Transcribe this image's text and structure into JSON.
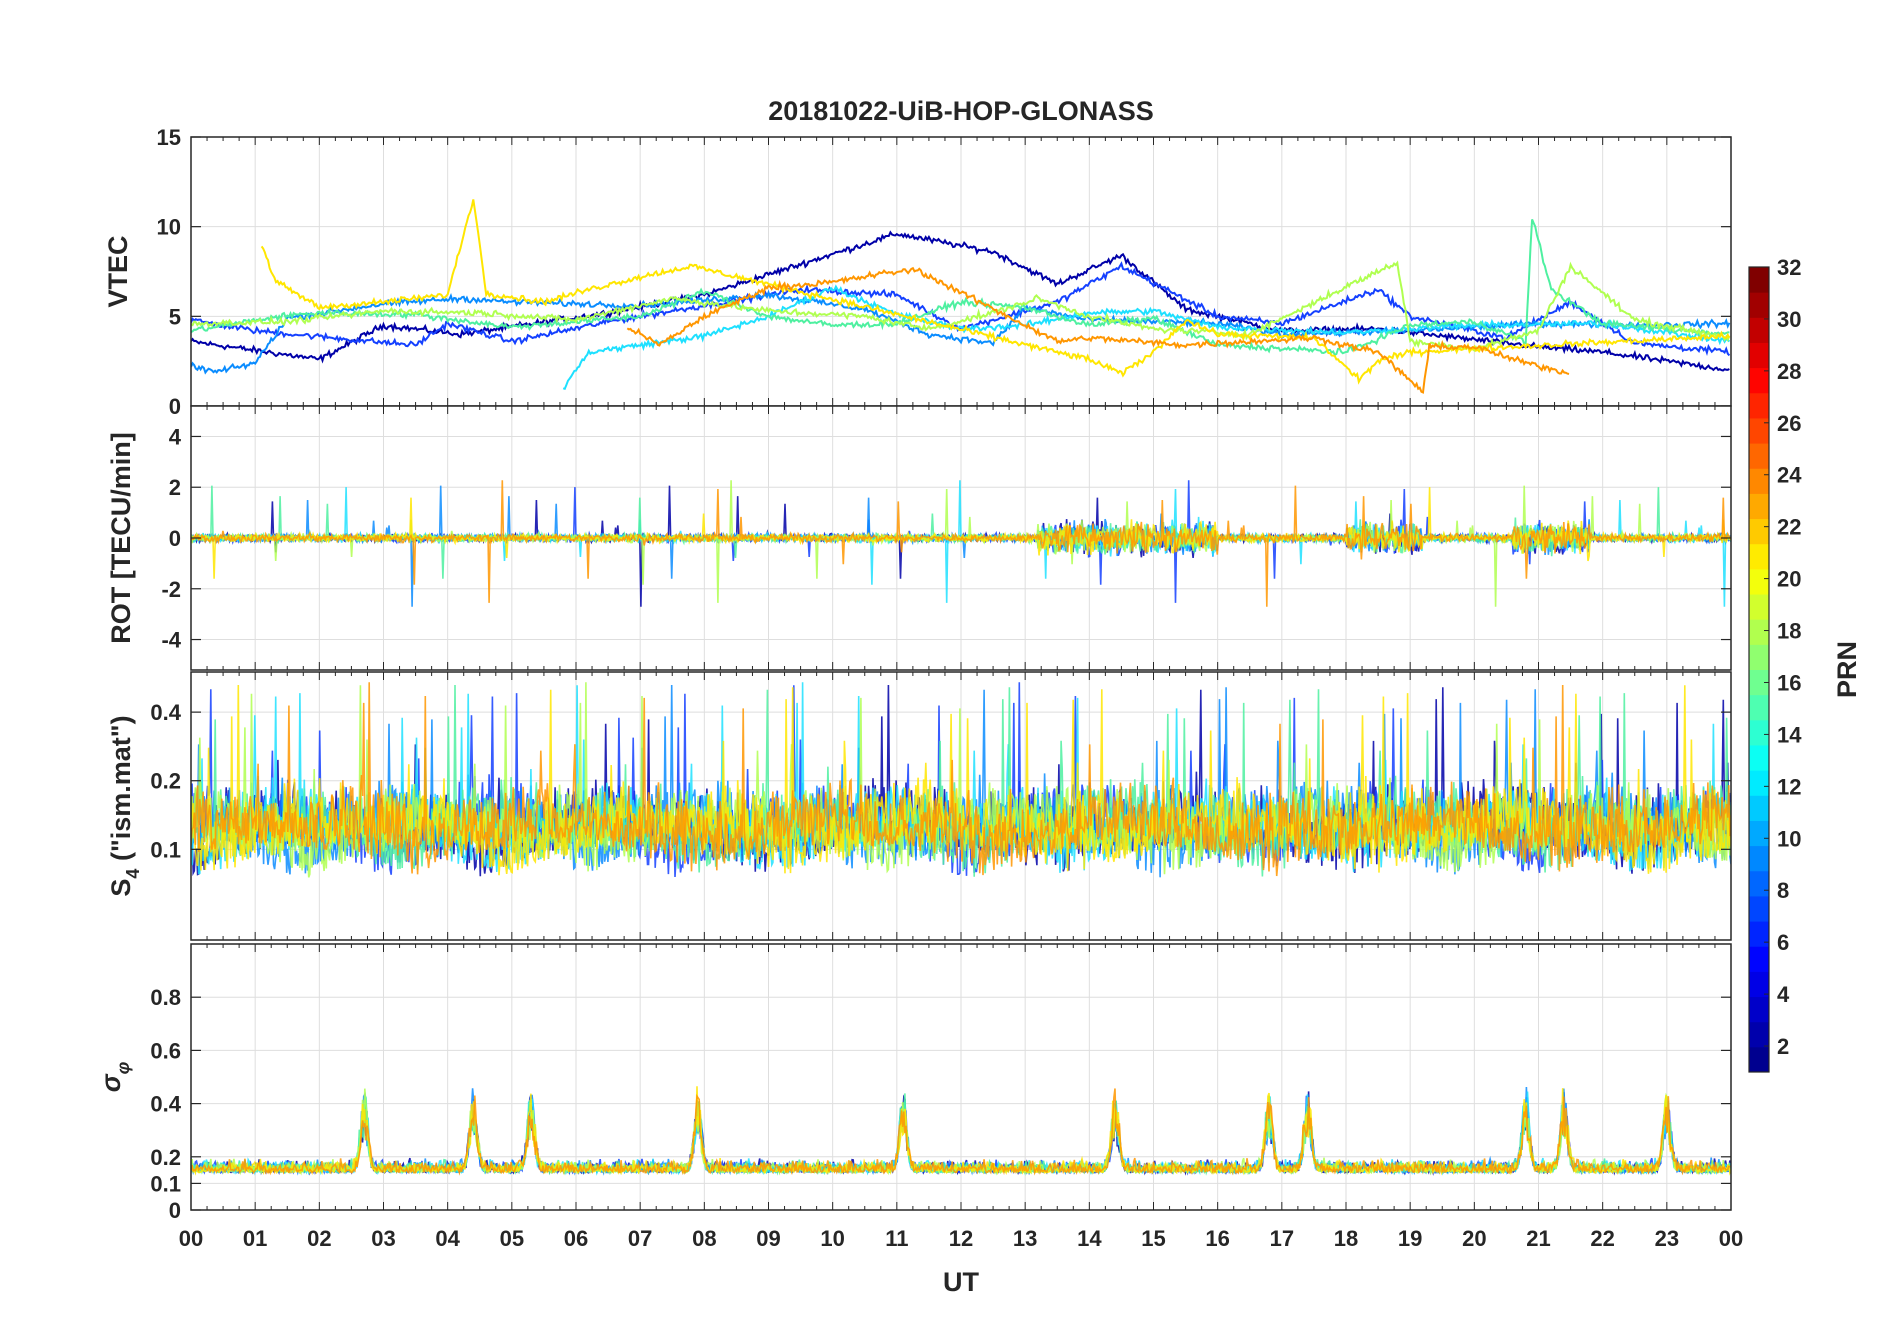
{
  "chart_data": {
    "type": "line",
    "title": "20181022-UiB-HOP-GLONASS",
    "xlabel": "UT",
    "x_ticks": [
      "00",
      "01",
      "02",
      "03",
      "04",
      "05",
      "06",
      "07",
      "08",
      "09",
      "10",
      "11",
      "12",
      "13",
      "14",
      "15",
      "16",
      "17",
      "18",
      "19",
      "20",
      "21",
      "22",
      "23",
      "00"
    ],
    "x_range_hours": [
      0,
      24
    ],
    "grid": true,
    "colorbar": {
      "label": "PRN",
      "range": [
        1,
        32
      ],
      "ticks": [
        "2",
        "4",
        "6",
        "8",
        "10",
        "12",
        "14",
        "16",
        "18",
        "20",
        "22",
        "24",
        "26",
        "28",
        "30",
        "32"
      ],
      "colormap": [
        "#00008f",
        "#0000ff",
        "#0080ff",
        "#00ffff",
        "#80ff80",
        "#ffff00",
        "#ff8000",
        "#ff0000",
        "#800000"
      ],
      "placement": "right"
    },
    "panels": [
      {
        "id": "vtec",
        "ylabel": "VTEC",
        "ylim": [
          0,
          15
        ],
        "y_ticks": [
          0,
          5,
          10,
          15
        ],
        "y_tick_labels": [
          "0",
          "5",
          "10",
          "15"
        ],
        "approx_series": [
          {
            "prn": 2,
            "color": "#0000a8",
            "points": [
              [
                0,
                3.6
              ],
              [
                2,
                2.6
              ],
              [
                3,
                4.5
              ],
              [
                4.2,
                4.0
              ],
              [
                6.5,
                5.2
              ],
              [
                8,
                6.2
              ],
              [
                11,
                9.6
              ],
              [
                12.5,
                8.6
              ],
              [
                13.5,
                6.8
              ],
              [
                14.5,
                8.4
              ],
              [
                15.5,
                5.4
              ],
              [
                17,
                4.2
              ],
              [
                18.5,
                4.3
              ],
              [
                21,
                3.3
              ],
              [
                22,
                3.0
              ],
              [
                24,
                2.0
              ]
            ]
          },
          {
            "prn": 6,
            "color": "#1440ff",
            "points": [
              [
                0,
                4.8
              ],
              [
                1,
                4.2
              ],
              [
                2.5,
                3.7
              ],
              [
                3.5,
                3.4
              ],
              [
                4,
                4.6
              ],
              [
                5,
                3.6
              ],
              [
                6.5,
                4.7
              ],
              [
                9.5,
                6.5
              ],
              [
                11,
                6.2
              ],
              [
                12,
                4.3
              ],
              [
                13.5,
                5.8
              ],
              [
                14.5,
                7.8
              ],
              [
                16,
                5.0
              ],
              [
                17,
                4.6
              ],
              [
                18.5,
                6.5
              ],
              [
                19,
                5.0
              ],
              [
                20.5,
                3.8
              ],
              [
                21.5,
                5.8
              ],
              [
                22.5,
                3.5
              ],
              [
                24,
                3.0
              ]
            ]
          },
          {
            "prn": 9,
            "color": "#0a8cff",
            "points": [
              [
                0,
                2.2
              ],
              [
                0.4,
                1.9
              ],
              [
                1,
                2.4
              ],
              [
                1.5,
                4.9
              ],
              [
                3,
                5.7
              ],
              [
                4.2,
                6.0
              ],
              [
                5,
                5.8
              ],
              [
                7,
                5.6
              ],
              [
                9,
                6.2
              ],
              [
                10.5,
                5.4
              ],
              [
                11.5,
                4.0
              ],
              [
                12.5,
                3.5
              ],
              [
                13,
                5.5
              ],
              [
                14,
                4.8
              ],
              [
                16,
                4.6
              ],
              [
                17,
                4.0
              ],
              [
                19,
                4.2
              ],
              [
                21,
                4.6
              ],
              [
                22.5,
                4.5
              ],
              [
                24,
                4.6
              ]
            ]
          },
          {
            "prn": 12,
            "color": "#1ee0ff",
            "points": [
              [
                5.8,
                1.0
              ],
              [
                6.2,
                3.0
              ],
              [
                7,
                3.4
              ],
              [
                8,
                3.9
              ],
              [
                9,
                5.0
              ],
              [
                10,
                6.6
              ],
              [
                11,
                5.1
              ],
              [
                12,
                4.3
              ],
              [
                13,
                4.5
              ],
              [
                14,
                5.2
              ],
              [
                15,
                5.3
              ],
              [
                16,
                4.4
              ],
              [
                18,
                4.1
              ],
              [
                20,
                4.5
              ],
              [
                22,
                4.6
              ],
              [
                24,
                3.6
              ]
            ]
          },
          {
            "prn": 15,
            "color": "#4ef0a0",
            "points": [
              [
                0,
                4.2
              ],
              [
                1.4,
                5.0
              ],
              [
                2,
                5.2
              ],
              [
                3.5,
                5.1
              ],
              [
                5,
                4.4
              ],
              [
                7,
                5.0
              ],
              [
                8,
                6.4
              ],
              [
                9,
                5.0
              ],
              [
                10,
                4.5
              ],
              [
                11,
                4.6
              ],
              [
                12,
                5.8
              ],
              [
                13,
                5.5
              ],
              [
                14,
                4.5
              ],
              [
                15,
                4.9
              ],
              [
                16,
                3.4
              ],
              [
                18,
                3.0
              ],
              [
                19,
                4.5
              ],
              [
                20,
                4.7
              ],
              [
                20.8,
                3.6
              ],
              [
                20.9,
                10.5
              ],
              [
                21.2,
                6.5
              ],
              [
                22,
                4.6
              ],
              [
                24,
                4.0
              ]
            ]
          },
          {
            "prn": 18,
            "color": "#b0ff50",
            "points": [
              [
                0,
                4.6
              ],
              [
                1.5,
                4.7
              ],
              [
                3,
                5.3
              ],
              [
                4.5,
                5.2
              ],
              [
                6,
                4.8
              ],
              [
                7.5,
                6.0
              ],
              [
                9,
                5.3
              ],
              [
                10.5,
                5.0
              ],
              [
                11.5,
                4.3
              ],
              [
                12.5,
                5.2
              ],
              [
                13.2,
                6.0
              ],
              [
                14,
                5.0
              ],
              [
                15,
                4.3
              ],
              [
                16.5,
                4.0
              ],
              [
                18.2,
                7.0
              ],
              [
                18.8,
                8.0
              ],
              [
                19,
                3.6
              ],
              [
                20,
                3.2
              ],
              [
                21,
                4.2
              ],
              [
                21.5,
                7.8
              ],
              [
                22.5,
                4.8
              ],
              [
                24,
                3.8
              ]
            ]
          },
          {
            "prn": 20,
            "color": "#ffe600",
            "points": [
              [
                1.1,
                9.0
              ],
              [
                1.3,
                7.0
              ],
              [
                2,
                5.5
              ],
              [
                3,
                5.8
              ],
              [
                4,
                6.2
              ],
              [
                4.4,
                11.6
              ],
              [
                4.6,
                6.3
              ],
              [
                5.5,
                5.8
              ],
              [
                6.2,
                6.5
              ],
              [
                7,
                7.2
              ],
              [
                7.8,
                7.8
              ],
              [
                13.5,
                3.0
              ],
              [
                14,
                2.6
              ],
              [
                14.5,
                1.8
              ],
              [
                15,
                3.0
              ],
              [
                15.5,
                4.8
              ],
              [
                16,
                4.0
              ],
              [
                17.5,
                3.8
              ],
              [
                18.2,
                1.5
              ],
              [
                18.5,
                2.5
              ],
              [
                19,
                3.0
              ],
              [
                20,
                3.2
              ],
              [
                24,
                3.9
              ]
            ]
          },
          {
            "prn": 23,
            "color": "#ff9600",
            "points": [
              [
                6.8,
                4.4
              ],
              [
                7.3,
                3.4
              ],
              [
                8,
                5.0
              ],
              [
                9,
                6.6
              ],
              [
                10,
                6.9
              ],
              [
                10.8,
                7.4
              ],
              [
                11.3,
                7.6
              ],
              [
                13.5,
                3.6
              ],
              [
                14,
                3.8
              ],
              [
                15.5,
                3.4
              ],
              [
                17.5,
                3.8
              ],
              [
                18.5,
                3.0
              ],
              [
                19.2,
                0.8
              ],
              [
                19.3,
                3.3
              ],
              [
                20,
                3.3
              ],
              [
                20.7,
                2.5
              ],
              [
                21.5,
                1.8
              ]
            ]
          }
        ]
      },
      {
        "id": "rot",
        "ylabel": "ROT [TECU/min]",
        "ylim": [
          -5.2,
          5.2
        ],
        "y_ticks": [
          -4,
          -2,
          0,
          2,
          4
        ],
        "y_tick_labels": [
          "-4",
          "-2",
          "0",
          "2",
          "4"
        ]
      },
      {
        "id": "s4",
        "ylabel": "S4 (\"ism.mat\")",
        "ylabel_main": "S",
        "ylabel_sub": "4",
        "ylabel_rest": " (\"ism.mat\")",
        "ylim": [
          0.04,
          0.6
        ],
        "y_scale": "log",
        "y_ticks": [
          0.1,
          0.2,
          0.4
        ],
        "y_tick_labels": [
          "0.1",
          "0.2",
          "0.4"
        ]
      },
      {
        "id": "sigma_phi",
        "ylabel": "σφ",
        "ylabel_main": "σ",
        "ylabel_sub": "φ",
        "ylim": [
          0,
          1
        ],
        "y_ticks": [
          0,
          0.1,
          0.2,
          0.4,
          0.6,
          0.8
        ],
        "y_tick_labels": [
          "0",
          "0.1",
          "0.2",
          "0.4",
          "0.6",
          "0.8"
        ]
      }
    ],
    "series_colors_by_prn": [
      {
        "prn": 2,
        "color": "#0000a8"
      },
      {
        "prn": 6,
        "color": "#1440ff"
      },
      {
        "prn": 9,
        "color": "#0a8cff"
      },
      {
        "prn": 12,
        "color": "#1ee0ff"
      },
      {
        "prn": 15,
        "color": "#4ef0a0"
      },
      {
        "prn": 18,
        "color": "#b0ff50"
      },
      {
        "prn": 20,
        "color": "#ffe600"
      },
      {
        "prn": 23,
        "color": "#ff9600"
      }
    ]
  }
}
